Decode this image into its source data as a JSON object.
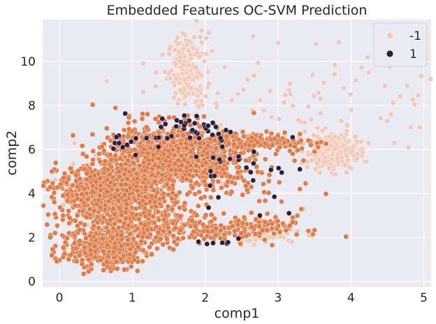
{
  "chart_data": {
    "type": "scatter",
    "title": "Embedded Features OC-SVM Prediction",
    "xlabel": "comp1",
    "ylabel": "comp2",
    "xlim": [
      -0.23,
      5.1
    ],
    "ylim": [
      -0.25,
      11.9
    ],
    "xticks": [
      0,
      1,
      2,
      3,
      4,
      5
    ],
    "yticks": [
      0,
      2,
      4,
      6,
      8,
      10
    ],
    "grid": true,
    "legend": {
      "placement": "top-right"
    },
    "series": [
      {
        "name": "-1",
        "color": "#f2c9b8",
        "clusters": [
          {
            "cx": 1.75,
            "cy": 9.6,
            "sx": 0.13,
            "sy": 0.75,
            "n": 170
          },
          {
            "cx": 3.75,
            "cy": 5.9,
            "sx": 0.17,
            "sy": 0.4,
            "n": 260
          },
          {
            "cx": 2.8,
            "cy": 2.05,
            "sx": 0.25,
            "sy": 0.17,
            "n": 70
          },
          {
            "cx": 3.4,
            "cy": 8.4,
            "sx": 1.0,
            "sy": 1.3,
            "n": 90
          },
          {
            "cx": 0.8,
            "cy": 4.0,
            "sx": 0.4,
            "sy": 0.8,
            "n": 60
          }
        ],
        "points": [
          [
            4.82,
            7.0
          ],
          [
            4.55,
            7.6
          ],
          [
            4.5,
            7.3
          ],
          [
            1.95,
            11.4
          ],
          [
            2.05,
            11.3
          ],
          [
            1.15,
            9.9
          ],
          [
            0.65,
            9.1
          ],
          [
            1.15,
            8.6
          ],
          [
            3.4,
            5.2
          ],
          [
            3.35,
            3.3
          ]
        ]
      },
      {
        "name": "1",
        "color": "#2d1e3e",
        "clusters": [
          {
            "cx": 1.85,
            "cy": 7.0,
            "sx": 0.28,
            "sy": 0.3,
            "n": 35
          },
          {
            "cx": 2.4,
            "cy": 5.3,
            "sx": 0.35,
            "sy": 0.9,
            "n": 25
          },
          {
            "cx": 0.95,
            "cy": 6.4,
            "sx": 0.15,
            "sy": 0.35,
            "n": 12
          },
          {
            "cx": 2.1,
            "cy": 1.8,
            "sx": 0.15,
            "sy": 0.15,
            "n": 8
          }
        ],
        "points": [
          [
            3.3,
            5.1
          ],
          [
            2.95,
            3.85
          ],
          [
            3.15,
            3.1
          ],
          [
            2.75,
            3.0
          ],
          [
            3.05,
            4.95
          ],
          [
            3.2,
            6.55
          ]
        ]
      },
      {
        "name": "",
        "color": "#e07b48",
        "clusters": [
          {
            "cx": 0.75,
            "cy": 4.1,
            "sx": 0.38,
            "sy": 0.6,
            "n": 950
          },
          {
            "cx": 1.4,
            "cy": 5.8,
            "sx": 0.4,
            "sy": 0.7,
            "n": 650
          },
          {
            "cx": 2.0,
            "cy": 5.3,
            "sx": 0.35,
            "sy": 0.55,
            "n": 280
          },
          {
            "cx": 0.6,
            "cy": 1.5,
            "sx": 0.3,
            "sy": 0.45,
            "n": 330
          },
          {
            "cx": 1.3,
            "cy": 2.5,
            "sx": 0.5,
            "sy": 0.45,
            "n": 330
          },
          {
            "cx": 2.5,
            "cy": 2.4,
            "sx": 0.35,
            "sy": 0.25,
            "n": 120
          },
          {
            "cx": 2.65,
            "cy": 6.35,
            "sx": 0.45,
            "sy": 0.22,
            "n": 180
          },
          {
            "cx": 2.8,
            "cy": 4.2,
            "sx": 0.4,
            "sy": 1.0,
            "n": 35
          }
        ],
        "points": [
          [
            3.45,
            6.2
          ],
          [
            3.5,
            5.9
          ],
          [
            3.55,
            6.1
          ],
          [
            3.3,
            6.7
          ],
          [
            3.2,
            5.8
          ],
          [
            3.35,
            5.5
          ],
          [
            0.05,
            3.0
          ],
          [
            0.05,
            3.9
          ],
          [
            0.1,
            4.5
          ],
          [
            0.4,
            0.45
          ],
          [
            3.2,
            2.7
          ],
          [
            3.3,
            4.2
          ]
        ]
      }
    ]
  }
}
